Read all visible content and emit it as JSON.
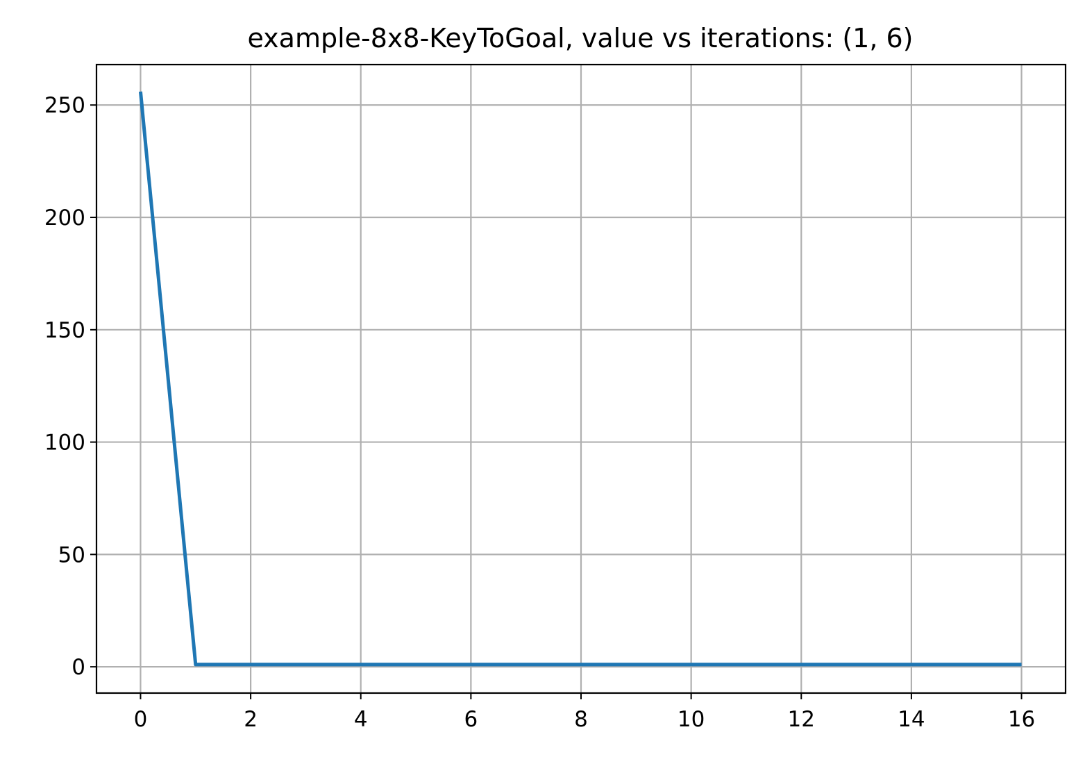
{
  "chart_data": {
    "type": "line",
    "title": "example-8x8-KeyToGoal, value vs iterations: (1, 6)",
    "xlabel": "",
    "ylabel": "",
    "xlim": [
      -0.8,
      16.8
    ],
    "ylim": [
      -11.7,
      268.0
    ],
    "xticks": [
      0,
      2,
      4,
      6,
      8,
      10,
      12,
      14,
      16
    ],
    "yticks": [
      0,
      50,
      100,
      150,
      200,
      250
    ],
    "grid": true,
    "series": [
      {
        "color": "#1f77b4",
        "x": [
          0,
          1,
          2,
          3,
          4,
          5,
          6,
          7,
          8,
          9,
          10,
          11,
          12,
          13,
          14,
          15,
          16
        ],
        "y": [
          256,
          1,
          1,
          1,
          1,
          1,
          1,
          1,
          1,
          1,
          1,
          1,
          1,
          1,
          1,
          1,
          1
        ]
      }
    ]
  }
}
